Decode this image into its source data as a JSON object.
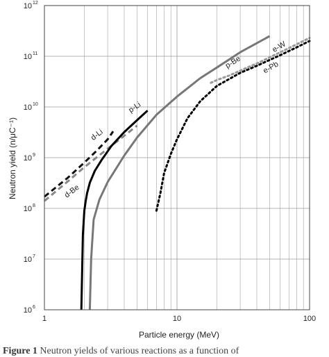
{
  "caption": {
    "figure_label": "Figure 1",
    "text": "Neutron yields of various reactions as a function of"
  },
  "chart_data": {
    "type": "line",
    "xlabel": "Particle energy (MeV)",
    "ylabel": "Neutron yield (n/μC⁻¹)",
    "x_scale": "log",
    "y_scale": "log",
    "xlim": [
      1,
      100
    ],
    "ylim": [
      1000000,
      1000000000000
    ],
    "x_ticks": [
      {
        "value": 1,
        "label": "1"
      },
      {
        "value": 10,
        "label": "10"
      },
      {
        "value": 100,
        "label": "100"
      }
    ],
    "y_ticks": [
      {
        "value": 1000000,
        "base": "10",
        "exp": "6"
      },
      {
        "value": 10000000,
        "base": "10",
        "exp": "7"
      },
      {
        "value": 100000000,
        "base": "10",
        "exp": "8"
      },
      {
        "value": 1000000000,
        "base": "10",
        "exp": "9"
      },
      {
        "value": 10000000000,
        "base": "10",
        "exp": "10"
      },
      {
        "value": 100000000000,
        "base": "10",
        "exp": "11"
      },
      {
        "value": 1000000000000,
        "base": "10",
        "exp": "12"
      }
    ],
    "grid": true,
    "series": [
      {
        "name": "d-Li",
        "color": "#111111",
        "style": "dashed",
        "x": [
          1,
          1.5,
          2,
          2.5,
          3,
          3.3
        ],
        "y": [
          170000000,
          400000000,
          800000000,
          1400000000,
          2300000000,
          3300000000
        ]
      },
      {
        "name": "d-Be",
        "color": "#888888",
        "style": "dashed",
        "x": [
          1,
          1.5,
          2,
          3,
          4,
          5
        ],
        "y": [
          140000000,
          340000000,
          650000000,
          1500000000,
          2700000000,
          4300000000
        ]
      },
      {
        "name": "p-Li",
        "color": "#000000",
        "style": "solid",
        "x": [
          1.9,
          1.95,
          2.0,
          2.05,
          2.1,
          2.2,
          2.4,
          2.7,
          3.2,
          4.0,
          5.0,
          6.0
        ],
        "y": [
          1000000,
          30000000,
          90000000,
          140000000,
          200000000,
          320000000,
          550000000,
          900000000,
          1700000000,
          3200000000,
          5500000000,
          8500000000
        ]
      },
      {
        "name": "p-Be",
        "color": "#777777",
        "style": "solid",
        "x": [
          2.2,
          2.25,
          2.35,
          2.6,
          3.0,
          4.0,
          5.0,
          7.0,
          10,
          15,
          20,
          30,
          50
        ],
        "y": [
          1000000,
          10000000,
          60000000,
          150000000,
          330000000,
          1100000000,
          2500000000,
          7000000000,
          16000000000,
          37000000000,
          60000000000,
          120000000000,
          250000000000
        ]
      },
      {
        "name": "e-W",
        "color": "#999999",
        "style": "dotted",
        "x": [
          18,
          20,
          25,
          30,
          40,
          50,
          70,
          100
        ],
        "y": [
          30000000000,
          34000000000,
          42000000000,
          52000000000,
          72000000000,
          95000000000,
          145000000000,
          230000000000
        ]
      },
      {
        "name": "e-Pb",
        "color": "#000000",
        "style": "dotted",
        "x": [
          7,
          7.5,
          8,
          9,
          10,
          12,
          15,
          20,
          30,
          40,
          60,
          80,
          100
        ],
        "y": [
          90000000,
          200000000,
          500000000,
          1200000000,
          2300000000,
          6000000000,
          13000000000,
          26000000000,
          47000000000,
          65000000000,
          105000000000,
          150000000000,
          200000000000
        ]
      }
    ],
    "annotations": [
      {
        "text": "d-Li",
        "series": "d-Li"
      },
      {
        "text": "d-Be",
        "series": "d-Be"
      },
      {
        "text": "p-Li",
        "series": "p-Li"
      },
      {
        "text": "p-Be",
        "series": "p-Be"
      },
      {
        "text": "e-W",
        "series": "e-W"
      },
      {
        "text": "e-Pb",
        "series": "e-Pb"
      }
    ]
  }
}
